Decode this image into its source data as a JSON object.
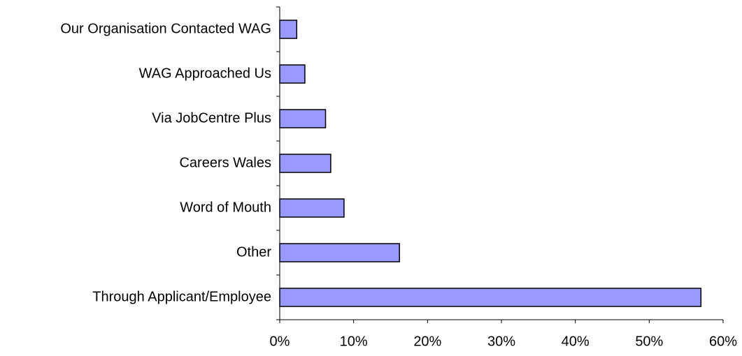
{
  "chart_data": {
    "type": "bar",
    "orientation": "horizontal",
    "categories": [
      "Our Organisation Contacted WAG",
      "WAG Approached Us",
      "Via JobCentre Plus",
      "Careers Wales",
      "Word of Mouth",
      "Other",
      "Through Applicant/Employee"
    ],
    "values": [
      2.3,
      3.4,
      6.2,
      6.9,
      8.7,
      16.2,
      57
    ],
    "color": "#9999ff",
    "xlim": [
      0,
      60
    ],
    "xticks": [
      {
        "value": 0,
        "label": "0%"
      },
      {
        "value": 10,
        "label": "10%"
      },
      {
        "value": 20,
        "label": "20%"
      },
      {
        "value": 30,
        "label": "30%"
      },
      {
        "value": 40,
        "label": "40%"
      },
      {
        "value": 50,
        "label": "50%"
      },
      {
        "value": 60,
        "label": "60%"
      }
    ],
    "grid": false
  }
}
